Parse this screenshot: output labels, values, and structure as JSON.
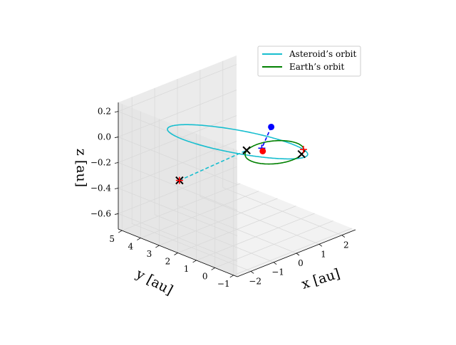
{
  "chart_data": {
    "type": "line3d",
    "title": "",
    "xlabel": "$x$ [au]",
    "ylabel": "$y$ [au]",
    "zlabel": "$z$ [au]",
    "xlabel_text": "x [au]",
    "ylabel_text": "y [au]",
    "zlabel_text": "z [au]",
    "xticks": [
      "−2",
      "−1",
      "0",
      "1",
      "2"
    ],
    "yticks": [
      "−1",
      "0",
      "1",
      "2",
      "3",
      "4",
      "5"
    ],
    "zticks": [
      "0.2",
      "0.0",
      "−0.2",
      "−0.4",
      "−0.6"
    ],
    "xtick_values": [
      -2,
      -1,
      0,
      1,
      2
    ],
    "ytick_values": [
      -1,
      0,
      1,
      2,
      3,
      4,
      5
    ],
    "ztick_values": [
      0.2,
      0.0,
      -0.2,
      -0.4,
      -0.6
    ],
    "xlim": [
      -2.6,
      2.6
    ],
    "ylim": [
      -1.2,
      5.2
    ],
    "zlim": [
      -0.72,
      0.27
    ],
    "grid": true,
    "legend_position": "top-right",
    "legend": [
      {
        "label": "Asteroid’s orbit",
        "color": "#17becf"
      },
      {
        "label": "Earth’s orbit",
        "color": "#008000"
      }
    ],
    "series": [
      {
        "name": "Asteroid’s orbit",
        "kind": "orbit",
        "color": "#17becf",
        "a": 2.6,
        "e": 0.62,
        "inclination_deg": 8.0,
        "ascending_node_deg": 120.0,
        "perihelion_arg_deg": 240.0
      },
      {
        "name": "Earth’s orbit",
        "kind": "orbit",
        "color": "#008000",
        "a": 1.0,
        "e": 0.0167,
        "inclination_deg": 0.0,
        "ascending_node_deg": 0.0,
        "perihelion_arg_deg": 102.9
      }
    ],
    "markers": [
      {
        "kind": "x",
        "color": "#000000",
        "x": -0.5,
        "y": 0.866,
        "z": 0.0
      },
      {
        "kind": "x",
        "color": "#000000",
        "x": 0.5,
        "y": -0.866,
        "z": 0.0
      },
      {
        "kind": "x",
        "color": "#000000",
        "x": -0.4,
        "y": 4.6,
        "z": -0.46
      },
      {
        "kind": "plus",
        "color": "#ff0000",
        "x": -0.4,
        "y": 4.6,
        "z": -0.46
      },
      {
        "kind": "plus",
        "color": "#ff0000",
        "x": 0.8,
        "y": -0.6,
        "z": 0.0
      },
      {
        "kind": "plus",
        "color": "#0000ff",
        "x": -0.05,
        "y": 0.6,
        "z": 0.0
      },
      {
        "kind": "dot",
        "color": "#0000ff",
        "x": 0.2,
        "y": 0.4,
        "z": 0.16
      },
      {
        "kind": "dot",
        "color": "#ff0000",
        "x": -0.05,
        "y": 0.55,
        "z": -0.02
      }
    ],
    "dashed_lines": [
      {
        "color": "#17becf",
        "from": [
          -0.4,
          4.6,
          -0.46
        ],
        "to": [
          -0.5,
          0.866,
          0.0
        ]
      },
      {
        "color": "#0000ff",
        "from": [
          0.2,
          0.4,
          0.16
        ],
        "to": [
          -0.05,
          0.6,
          0.0
        ]
      }
    ]
  }
}
